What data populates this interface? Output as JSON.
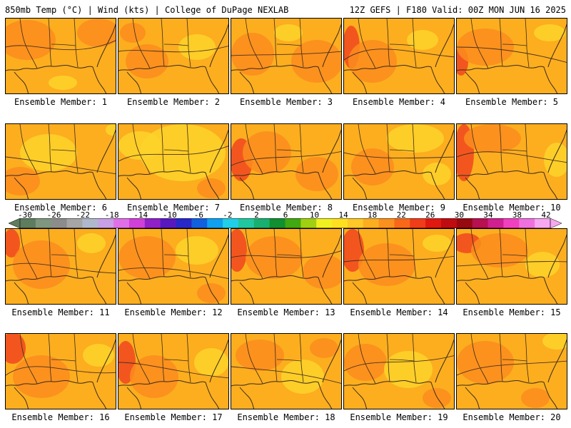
{
  "header": {
    "left": "850mb Temp (°C) | Wind (kts) | College of DuPage NEXLAB",
    "right": "12Z GEFS | F180 Valid: 00Z MON JUN 16 2025"
  },
  "colors": {
    "background": "#fcae1f",
    "warm_patch": "#fb8c1e",
    "cool_patch": "#fdd32a",
    "hot_patch": "#f0461e",
    "coastline": "#3a2a1a"
  },
  "members": [
    {
      "label": "Ensemble Member: 1",
      "id": 1
    },
    {
      "label": "Ensemble Member: 2",
      "id": 2
    },
    {
      "label": "Ensemble Member: 3",
      "id": 3
    },
    {
      "label": "Ensemble Member: 4",
      "id": 4
    },
    {
      "label": "Ensemble Member: 5",
      "id": 5
    },
    {
      "label": "Ensemble Member: 6",
      "id": 6
    },
    {
      "label": "Ensemble Member: 7",
      "id": 7
    },
    {
      "label": "Ensemble Member: 8",
      "id": 8
    },
    {
      "label": "Ensemble Member: 9",
      "id": 9
    },
    {
      "label": "Ensemble Member: 10",
      "id": 10
    },
    {
      "label": "Ensemble Member: 11",
      "id": 11
    },
    {
      "label": "Ensemble Member: 12",
      "id": 12
    },
    {
      "label": "Ensemble Member: 13",
      "id": 13
    },
    {
      "label": "Ensemble Member: 14",
      "id": 14
    },
    {
      "label": "Ensemble Member: 15",
      "id": 15
    },
    {
      "label": "Ensemble Member: 16",
      "id": 16
    },
    {
      "label": "Ensemble Member: 17",
      "id": 17
    },
    {
      "label": "Ensemble Member: 18",
      "id": 18
    },
    {
      "label": "Ensemble Member: 19",
      "id": 19
    },
    {
      "label": "Ensemble Member: 20",
      "id": 20
    }
  ],
  "colorbar": {
    "labels": [
      "-30",
      "-26",
      "-22",
      "-18",
      "-14",
      "-10",
      "-6",
      "-2",
      "2",
      "6",
      "10",
      "14",
      "18",
      "22",
      "26",
      "30",
      "34",
      "38",
      "42"
    ],
    "colors": [
      "#5e7c5e",
      "#7f967f",
      "#8c8c8c",
      "#a6a6a6",
      "#b0b8cc",
      "#c8a0e6",
      "#e070e8",
      "#d040d8",
      "#9020c8",
      "#5818c0",
      "#2828c8",
      "#1060e0",
      "#10a0f0",
      "#20d0e8",
      "#20c8a0",
      "#18b070",
      "#109030",
      "#40a810",
      "#a0d010",
      "#f0f020",
      "#ffe020",
      "#fdc828",
      "#fcae1f",
      "#fb901e",
      "#f86818",
      "#f03c18",
      "#e01810",
      "#c00c10",
      "#980810",
      "#b81050",
      "#d02090",
      "#f040c0",
      "#f070e0",
      "#f8a8f0"
    ]
  }
}
